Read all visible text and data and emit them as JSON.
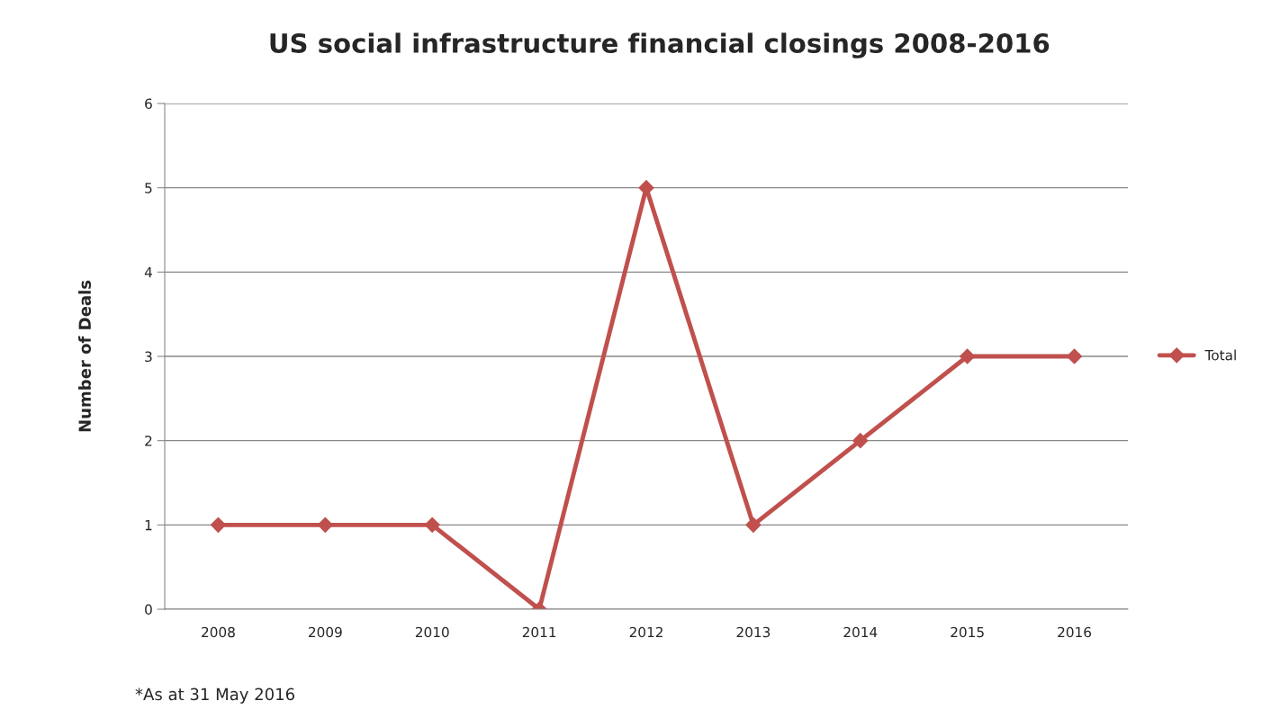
{
  "chart_data": {
    "type": "line",
    "title": "US social infrastructure financial closings 2008-2016",
    "ylabel": "Number of Deals",
    "categories": [
      "2008",
      "2009",
      "2010",
      "2011",
      "2012",
      "2013",
      "2014",
      "2015",
      "2016"
    ],
    "series": [
      {
        "name": "Total",
        "color": "#c0504d",
        "values": [
          1,
          1,
          1,
          0,
          5,
          1,
          2,
          3,
          3
        ]
      }
    ],
    "ylim": [
      0,
      6
    ],
    "yticks": [
      0,
      1,
      2,
      3,
      4,
      5,
      6
    ],
    "grid": "y",
    "legend": "right",
    "marker": "diamond",
    "line_style": "solid",
    "annotations": [
      "*As at 31 May 2016"
    ]
  }
}
